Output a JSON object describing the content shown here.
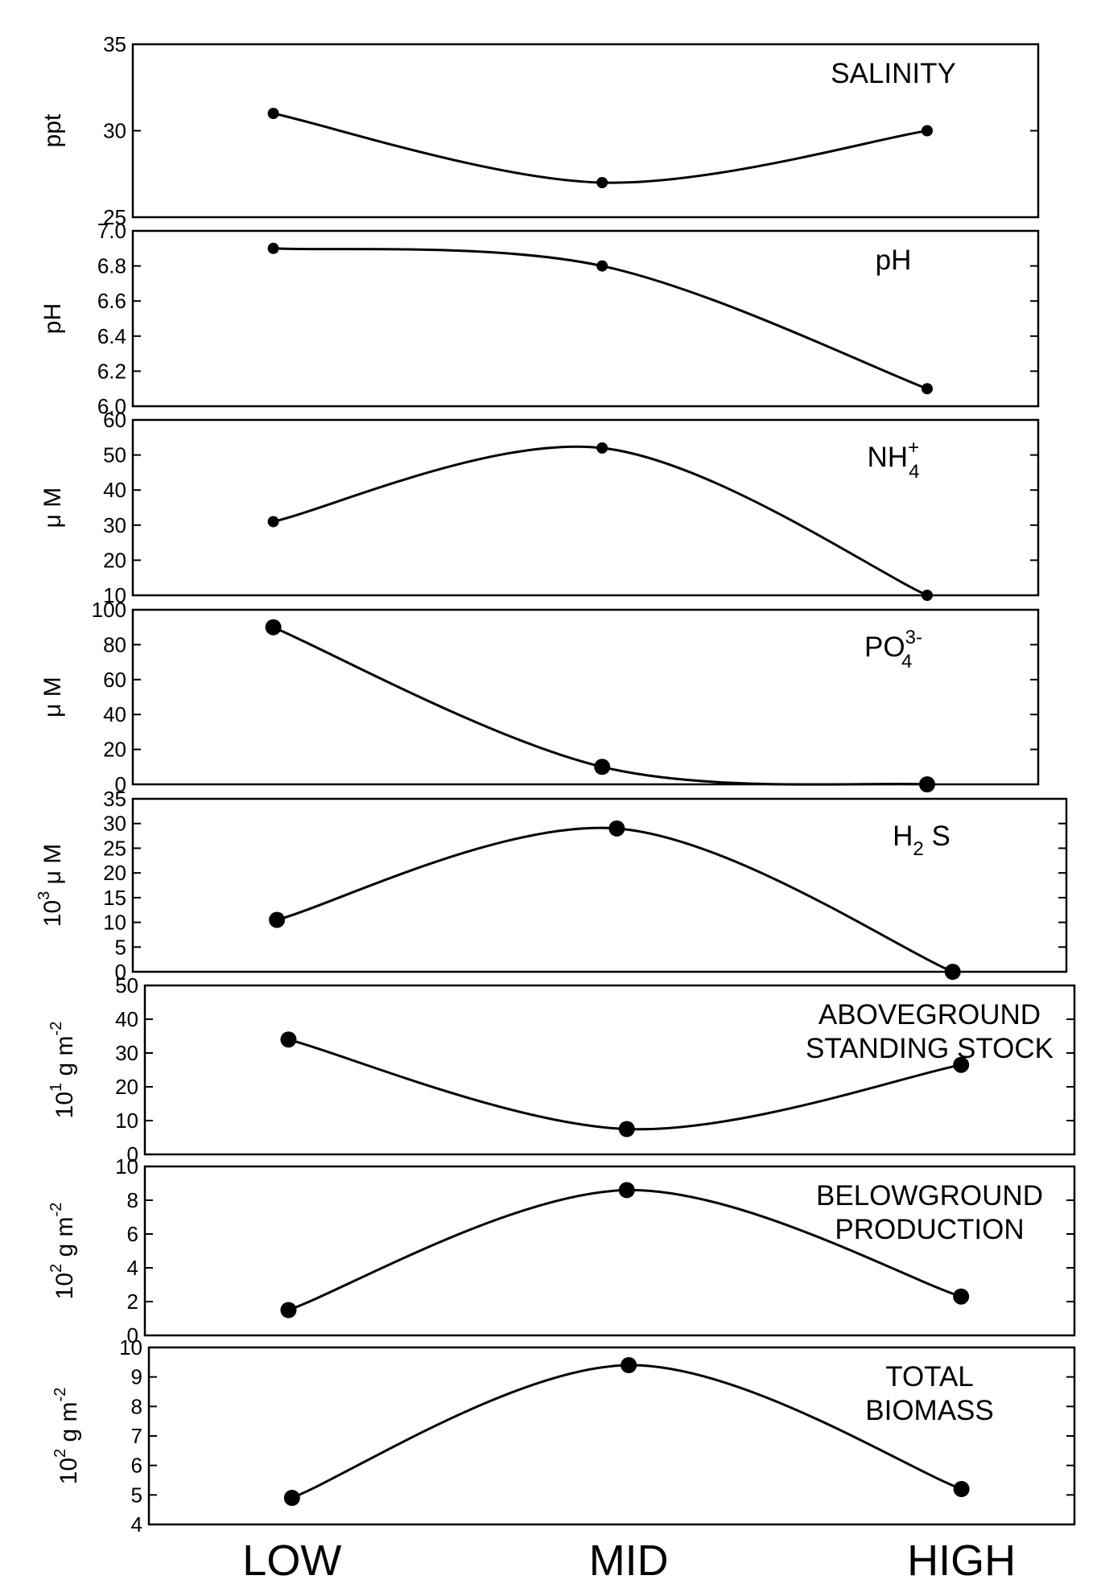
{
  "chart_data": {
    "type": "line",
    "x_categories": [
      "LOW",
      "MID",
      "HIGH"
    ],
    "panels": [
      {
        "id": "salinity",
        "title_lines": [
          "SALINITY"
        ],
        "ylabel": "ppt",
        "ylim": [
          25,
          35
        ],
        "yticks": [
          25,
          30,
          35
        ],
        "series": [
          {
            "values": [
              31,
              27,
              30
            ]
          }
        ]
      },
      {
        "id": "ph",
        "title_lines": [
          "pH"
        ],
        "ylabel": "pH",
        "ylim": [
          6.0,
          7.0
        ],
        "yticks": [
          "6.0",
          "6.2",
          "6.4",
          "6.6",
          "6.8",
          "7.0"
        ],
        "series": [
          {
            "values": [
              6.9,
              6.8,
              6.1
            ]
          }
        ]
      },
      {
        "id": "ammonium",
        "title": "NH",
        "title_sup": "+",
        "title_sub": "4",
        "ylabel": "μ M",
        "ylim": [
          10,
          60
        ],
        "yticks": [
          10,
          20,
          30,
          40,
          50,
          60
        ],
        "series": [
          {
            "values": [
              31,
              52,
              10
            ]
          }
        ]
      },
      {
        "id": "phosphate",
        "title": "PO",
        "title_sup": "3-",
        "title_sub": "4",
        "ylabel": "μ M",
        "ylim": [
          0,
          100
        ],
        "yticks": [
          0,
          20,
          40,
          60,
          80,
          100
        ],
        "series": [
          {
            "values": [
              90,
              10,
              0
            ]
          }
        ]
      },
      {
        "id": "sulfide",
        "title": "H",
        "title_sub": "2",
        "title_after": " S",
        "ylabel_base": "10",
        "ylabel_sup": "3",
        "ylabel_rest": "μ M",
        "ylim": [
          0,
          35
        ],
        "yticks": [
          0,
          5,
          10,
          15,
          20,
          25,
          30,
          35
        ],
        "series": [
          {
            "values": [
              10.5,
              29,
              0
            ]
          }
        ]
      },
      {
        "id": "aboveground",
        "title_lines": [
          "ABOVEGROUND",
          "STANDING STOCK"
        ],
        "ylabel_base": "10",
        "ylabel_sup": "1",
        "ylabel_rest": "g m",
        "ylabel_sup2": "-2",
        "ylim": [
          0,
          50
        ],
        "yticks": [
          0,
          10,
          20,
          30,
          40,
          50
        ],
        "series": [
          {
            "values": [
              34,
              7.5,
              26.5
            ]
          }
        ]
      },
      {
        "id": "belowground",
        "title_lines": [
          "BELOWGROUND",
          "PRODUCTION"
        ],
        "ylabel_base": "10",
        "ylabel_sup": "2",
        "ylabel_rest": "g m",
        "ylabel_sup2": "-2",
        "ylim": [
          0,
          10
        ],
        "yticks": [
          0,
          2,
          4,
          6,
          8,
          10
        ],
        "series": [
          {
            "values": [
              1.5,
              8.6,
              2.3
            ]
          }
        ]
      },
      {
        "id": "total_biomass",
        "title_lines": [
          "TOTAL",
          "BIOMASS"
        ],
        "ylabel_base": "10",
        "ylabel_sup": "2",
        "ylabel_rest": "g m",
        "ylabel_sup2": "-2",
        "ylim": [
          4,
          10
        ],
        "yticks": [
          4,
          5,
          6,
          7,
          8,
          9,
          10
        ],
        "series": [
          {
            "values": [
              4.9,
              9.4,
              5.2
            ]
          }
        ]
      }
    ]
  }
}
